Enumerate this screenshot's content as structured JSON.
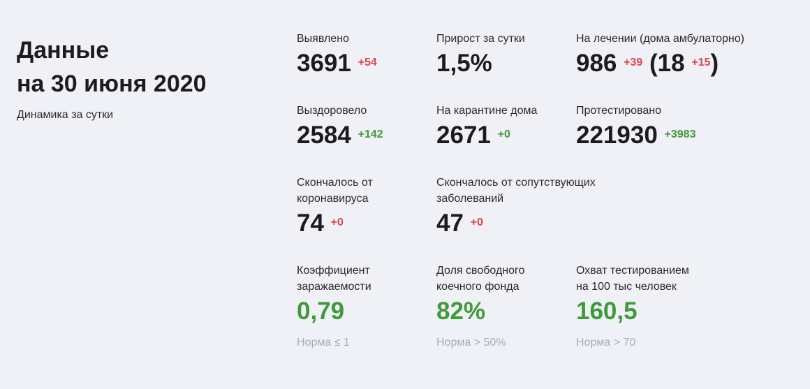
{
  "header": {
    "title_line1": "Данные",
    "title_line2": "на 30 июня 2020",
    "subtitle": "Динамика за сутки"
  },
  "stats": {
    "detected": {
      "label": "Выявлено",
      "value": "3691",
      "delta": "+54"
    },
    "growth": {
      "label": "Прирост за сутки",
      "value": "1,5%"
    },
    "treatment": {
      "label": "На лечении (дома амбулаторно)",
      "value": "986",
      "delta": "+39",
      "home_value": "18",
      "home_delta": "+15"
    },
    "recovered": {
      "label": "Выздоровело",
      "value": "2584",
      "delta": "+142"
    },
    "quarantine": {
      "label": "На карантине дома",
      "value": "2671",
      "delta": "+0"
    },
    "tested": {
      "label": "Протестировано",
      "value": "221930",
      "delta": "+3983"
    },
    "died_covid": {
      "label": "Скончалось от\nкоронавируса",
      "value": "74",
      "delta": "+0"
    },
    "died_other": {
      "label": "Скончалось от сопутствующих\nзаболеваний",
      "value": "47",
      "delta": "+0"
    },
    "infection_rate": {
      "label": "Коэффициент\nзаражаемости",
      "value": "0,79",
      "norm": "Норма ≤ 1"
    },
    "bed_share": {
      "label": "Доля свободного\nкоечного фонда",
      "value": "82%",
      "norm": "Норма > 50%"
    },
    "test_coverage": {
      "label": "Охват тестированием\nна 100 тыс человек",
      "value": "160,5",
      "norm": "Норма > 70"
    }
  },
  "colors": {
    "background": "#f0f1f6",
    "text": "#1c1c1f",
    "negative": "#e0454d",
    "positive": "#3f9a3a",
    "muted": "#a8acb8"
  }
}
